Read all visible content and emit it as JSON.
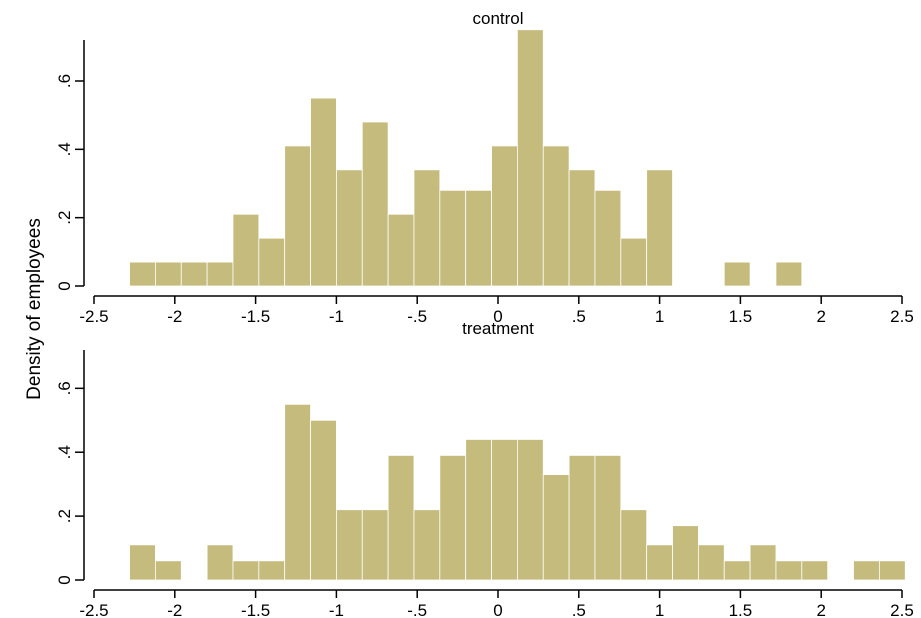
{
  "chart_data": {
    "type": "bar",
    "subtype": "histogram",
    "ylabel": "Density of employees",
    "bar_color": "#c4bb7c",
    "bin_width": 0.16,
    "xlim": [
      -2.5,
      2.5
    ],
    "ylim": [
      0,
      0.72
    ],
    "x_ticks": [
      -2.5,
      -2,
      -1.5,
      -1,
      -0.5,
      0,
      0.5,
      1,
      1.5,
      2,
      2.5
    ],
    "x_tick_labels": [
      "-2.5",
      "-2",
      "-1.5",
      "-1",
      "-.5",
      "0",
      ".5",
      "1",
      "1.5",
      "2",
      "2.5"
    ],
    "y_ticks": [
      0,
      0.2,
      0.4,
      0.6
    ],
    "y_tick_labels": [
      "0",
      ".2",
      ".4",
      ".6"
    ],
    "grid": false,
    "panels": [
      {
        "title": "control",
        "bin_starts": [
          -2.28,
          -2.12,
          -1.96,
          -1.8,
          -1.64,
          -1.48,
          -1.32,
          -1.16,
          -1.0,
          -0.84,
          -0.68,
          -0.52,
          -0.36,
          -0.2,
          -0.04,
          0.12,
          0.28,
          0.44,
          0.6,
          0.76,
          0.92,
          1.08,
          1.24,
          1.4,
          1.56,
          1.72
        ],
        "values": [
          0.07,
          0.07,
          0.07,
          0.07,
          0.21,
          0.14,
          0.41,
          0.55,
          0.34,
          0.48,
          0.21,
          0.34,
          0.28,
          0.28,
          0.41,
          0.75,
          0.41,
          0.34,
          0.28,
          0.14,
          0.34,
          0,
          0,
          0.07,
          0,
          0.07
        ]
      },
      {
        "title": "treatment",
        "bin_starts": [
          -2.28,
          -2.12,
          -1.96,
          -1.8,
          -1.64,
          -1.48,
          -1.32,
          -1.16,
          -1.0,
          -0.84,
          -0.68,
          -0.52,
          -0.36,
          -0.2,
          -0.04,
          0.12,
          0.28,
          0.44,
          0.6,
          0.76,
          0.92,
          1.08,
          1.24,
          1.4,
          1.56,
          1.72,
          1.88,
          2.04,
          2.2,
          2.36
        ],
        "values": [
          0.11,
          0.06,
          0,
          0.11,
          0.06,
          0.06,
          0.55,
          0.5,
          0.22,
          0.22,
          0.39,
          0.22,
          0.39,
          0.44,
          0.44,
          0.44,
          0.33,
          0.39,
          0.39,
          0.22,
          0.11,
          0.17,
          0.11,
          0.06,
          0.11,
          0.06,
          0.06,
          0,
          0.06,
          0.06
        ]
      }
    ]
  }
}
